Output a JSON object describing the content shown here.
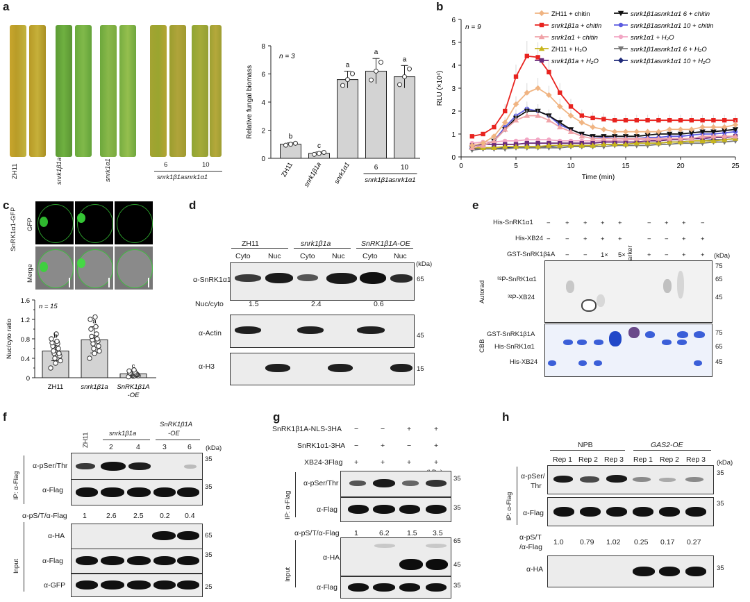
{
  "panels": {
    "a": "a",
    "b": "b",
    "c": "c",
    "d": "d",
    "e": "e",
    "f": "f",
    "g": "g",
    "h": "h"
  },
  "a": {
    "leaf_labels": [
      "ZH11",
      "snrk1β1a",
      "snrk1α1",
      "6",
      "10"
    ],
    "leaf_group": "snrk1β1asnrk1α1",
    "chart_data": {
      "type": "bar",
      "n": "n = 3",
      "ylabel": "Relative fungal biomass",
      "ylim": [
        0,
        8
      ],
      "yticks": [
        "0",
        "2",
        "4",
        "6",
        "8"
      ],
      "categories": [
        "ZH11",
        "snrk1β1a",
        "snrk1α1",
        "6",
        "10"
      ],
      "values": [
        1.0,
        0.35,
        5.6,
        6.2,
        5.8
      ],
      "errors": [
        0.1,
        0.1,
        0.6,
        0.9,
        0.8
      ],
      "letters": [
        "b",
        "c",
        "a",
        "a",
        "a"
      ],
      "group_label": "snrk1β1asnrk1α1"
    }
  },
  "b": {
    "chart_data": {
      "type": "line",
      "n": "n = 9",
      "xlabel": "Time (min)",
      "ylabel": "RLU (×10⁴)",
      "xlim": [
        0,
        25
      ],
      "ylim": [
        0,
        6
      ],
      "xticks": [
        "0",
        "5",
        "10",
        "15",
        "20",
        "25"
      ],
      "yticks": [
        "0",
        "1",
        "2",
        "3",
        "4",
        "5",
        "6"
      ],
      "x": [
        1,
        2,
        3,
        4,
        5,
        6,
        7,
        8,
        9,
        10,
        11,
        12,
        13,
        14,
        15,
        16,
        17,
        18,
        19,
        20,
        21,
        22,
        23,
        24,
        25
      ],
      "series": [
        {
          "name": "ZH11 + chitin",
          "color": "#f0b482",
          "marker": "diamond",
          "values": [
            0.5,
            0.6,
            0.9,
            1.5,
            2.3,
            2.8,
            3.0,
            2.7,
            2.2,
            1.8,
            1.5,
            1.3,
            1.2,
            1.1,
            1.1,
            1.1,
            1.1,
            1.1,
            1.2,
            1.2,
            1.2,
            1.3,
            1.3,
            1.3,
            1.4
          ]
        },
        {
          "name": "snrk1β1a + chitin",
          "color": "#e8231f",
          "marker": "square",
          "values": [
            0.9,
            1.0,
            1.3,
            2.0,
            3.5,
            4.4,
            4.35,
            3.7,
            2.8,
            2.2,
            1.8,
            1.7,
            1.65,
            1.6,
            1.6,
            1.6,
            1.6,
            1.6,
            1.6,
            1.6,
            1.6,
            1.6,
            1.6,
            1.6,
            1.6
          ]
        },
        {
          "name": "snrk1α1 + chitin",
          "color": "#f0a3a8",
          "marker": "triangle",
          "values": [
            0.4,
            0.5,
            0.7,
            1.2,
            1.6,
            1.8,
            1.8,
            1.6,
            1.3,
            1.1,
            0.9,
            0.8,
            0.8,
            0.8,
            0.8,
            0.8,
            0.8,
            0.8,
            0.8,
            0.8,
            0.8,
            0.9,
            0.9,
            0.9,
            0.9
          ]
        },
        {
          "name": "ZH11 + H₂O",
          "color": "#c7b51c",
          "marker": "triangle",
          "values": [
            0.4,
            0.4,
            0.4,
            0.45,
            0.45,
            0.45,
            0.45,
            0.5,
            0.5,
            0.5,
            0.5,
            0.5,
            0.55,
            0.55,
            0.55,
            0.6,
            0.6,
            0.6,
            0.65,
            0.65,
            0.7,
            0.7,
            0.7,
            0.75,
            0.8
          ]
        },
        {
          "name": "snrk1β1a + H₂O",
          "color": "#6a2a7a",
          "marker": "square",
          "values": [
            0.5,
            0.55,
            0.55,
            0.55,
            0.55,
            0.6,
            0.6,
            0.6,
            0.6,
            0.6,
            0.6,
            0.6,
            0.65,
            0.65,
            0.65,
            0.65,
            0.7,
            0.7,
            0.75,
            0.75,
            0.8,
            0.8,
            0.85,
            0.85,
            0.9
          ]
        },
        {
          "name": "snrk1β1asnrk1α1 6 + chitin",
          "color": "#111111",
          "marker": "triangle-down",
          "values": [
            0.4,
            0.5,
            0.7,
            1.2,
            1.7,
            2.0,
            2.0,
            1.8,
            1.5,
            1.2,
            1.0,
            0.9,
            0.9,
            0.9,
            0.9,
            0.9,
            0.95,
            1.0,
            1.0,
            1.0,
            1.05,
            1.1,
            1.1,
            1.15,
            1.2
          ]
        },
        {
          "name": "snrk1β1asnrk1α1 10 + chitin",
          "color": "#5b5be0",
          "marker": "circle",
          "values": [
            0.4,
            0.5,
            0.7,
            1.3,
            1.8,
            2.1,
            2.0,
            1.8,
            1.4,
            1.2,
            1.0,
            0.9,
            0.85,
            0.8,
            0.8,
            0.8,
            0.85,
            0.85,
            0.9,
            0.9,
            0.95,
            1.0,
            1.0,
            1.05,
            1.1
          ]
        },
        {
          "name": "snrk1α1 + H₂O",
          "color": "#f2a6c4",
          "marker": "circle",
          "values": [
            0.6,
            0.65,
            0.65,
            0.7,
            0.7,
            0.75,
            0.75,
            0.75,
            0.7,
            0.7,
            0.7,
            0.7,
            0.7,
            0.7,
            0.75,
            0.75,
            0.75,
            0.75,
            0.8,
            0.8,
            0.8,
            0.85,
            0.85,
            0.9,
            0.9
          ]
        },
        {
          "name": "snrk1β1asnrk1α1 6 + H₂O",
          "color": "#777777",
          "marker": "triangle-down",
          "values": [
            0.3,
            0.35,
            0.35,
            0.35,
            0.4,
            0.4,
            0.4,
            0.4,
            0.4,
            0.45,
            0.45,
            0.45,
            0.45,
            0.5,
            0.5,
            0.5,
            0.5,
            0.55,
            0.55,
            0.6,
            0.6,
            0.6,
            0.65,
            0.65,
            0.7
          ]
        },
        {
          "name": "snrk1β1asnrk1α1 10 + H₂O",
          "color": "#1f2a7a",
          "marker": "diamond",
          "values": [
            0.35,
            0.4,
            0.4,
            0.4,
            0.45,
            0.45,
            0.45,
            0.45,
            0.5,
            0.5,
            0.5,
            0.5,
            0.55,
            0.55,
            0.55,
            0.6,
            0.6,
            0.6,
            0.65,
            0.65,
            0.7,
            0.7,
            0.75,
            0.75,
            0.8
          ]
        }
      ]
    }
  },
  "c": {
    "gfp_label": "GFP",
    "merge_label": "Merge",
    "row_title": "SnRK1α1-GFP",
    "chart_data": {
      "type": "bar",
      "n": "n = 15",
      "ylabel": "Nuc/cyto ratio",
      "ylim": [
        0,
        1.6
      ],
      "yticks": [
        "0",
        "0.4",
        "0.8",
        "1.2",
        "1.6"
      ],
      "yticks_minor": [
        "0.2",
        "0.6",
        "1.0",
        "1.4"
      ],
      "categories": [
        "ZH11",
        "snrk1β1a",
        "SnRK1β1A-OE"
      ],
      "values": [
        0.55,
        0.78,
        0.08
      ],
      "errors": [
        0.2,
        0.27,
        0.05
      ],
      "letters": [
        "b",
        "a",
        "c"
      ],
      "points": [
        [
          0.2,
          0.3,
          0.35,
          0.4,
          0.45,
          0.5,
          0.5,
          0.55,
          0.6,
          0.65,
          0.7,
          0.72,
          0.75,
          0.8,
          0.9
        ],
        [
          0.4,
          0.5,
          0.55,
          0.6,
          0.65,
          0.7,
          0.75,
          0.78,
          0.8,
          0.85,
          0.9,
          1.0,
          1.05,
          1.2,
          1.25
        ],
        [
          0.02,
          0.03,
          0.04,
          0.05,
          0.06,
          0.07,
          0.07,
          0.08,
          0.08,
          0.09,
          0.1,
          0.1,
          0.12,
          0.14,
          0.16
        ]
      ]
    }
  },
  "d": {
    "groups": [
      "ZH11",
      "snrk1β1a",
      "SnRK1β1A-OE"
    ],
    "lanes": [
      "Cyto",
      "Nuc",
      "Cyto",
      "Nuc",
      "Cyto",
      "Nuc"
    ],
    "kda": "(kDa)",
    "rows": [
      {
        "label": "α-SnRK1α1",
        "size": "65"
      },
      {
        "label": "α-Actin",
        "size": "45"
      },
      {
        "label": "α-H3",
        "size": "15"
      }
    ],
    "ratio_label": "Nuc/cyto",
    "ratios": [
      "1.5",
      "2.4",
      "0.6"
    ]
  },
  "e": {
    "row_labels": [
      "His-SnRK1α1",
      "His-XB24",
      "GST-SnRK1β1A"
    ],
    "row1": [
      "−",
      "+",
      "+",
      "+",
      "+",
      "−",
      "+",
      "+",
      "−"
    ],
    "row2": [
      "−",
      "−",
      "+",
      "+",
      "+",
      "−",
      "−",
      "+",
      "+"
    ],
    "row3": [
      "−",
      "−",
      "−",
      "1×",
      "5×",
      "+",
      "−",
      "+",
      "+"
    ],
    "marker": "Marker",
    "kda": "(kDa)",
    "autorad_title": "Autorad",
    "autorad_bands": [
      "³²P-SnRK1α1",
      "³²P-XB24"
    ],
    "autorad_sizes": [
      "75",
      "65",
      "45"
    ],
    "cbb_title": "CBB",
    "cbb_bands": [
      "GST-SnRK1β1A",
      "His-SnRK1α1",
      "His-XB24"
    ],
    "cbb_sizes": [
      "75",
      "65",
      "45"
    ]
  },
  "f": {
    "lanes": [
      "ZH11",
      "2",
      "4",
      "3",
      "6"
    ],
    "group1": "snrk1β1a",
    "group2": "SnRK1β1A\n-OE",
    "group2a": "SnRK1β1A",
    "group2b": "-OE",
    "kda": "(kDa)",
    "ip_label": "IP: α-Flag",
    "input_label": "Input",
    "ip_rows": [
      {
        "label": "α-pSer/Thr",
        "size": "35"
      },
      {
        "label": "α-Flag",
        "size": "35"
      }
    ],
    "ratio_label": "α-pS/T/α-Flag",
    "ratios": [
      "1",
      "2.6",
      "2.5",
      "0.2",
      "0.4"
    ],
    "input_rows": [
      {
        "label": "α-HA",
        "size": "65"
      },
      {
        "label": "α-Flag",
        "size": "35"
      },
      {
        "label": "α-GFP",
        "size": "25"
      }
    ]
  },
  "g": {
    "row_labels": [
      "SnRK1β1A-NLS-3HA",
      "SnRK1α1-3HA",
      "XB24-3Flag"
    ],
    "row1": [
      "−",
      "−",
      "+",
      "+"
    ],
    "row2": [
      "−",
      "+",
      "−",
      "+"
    ],
    "row3": [
      "+",
      "+",
      "+",
      "+"
    ],
    "kda": "(kDa)",
    "ip_label": "IP: α-Flag",
    "input_label": "Input",
    "ip_rows": [
      {
        "label": "α-pSer/Thr",
        "size": "35"
      },
      {
        "label": "α-Flag",
        "size": "35"
      }
    ],
    "ratio_label": "α-pS/T/α-Flag",
    "ratios": [
      "1",
      "6.2",
      "1.5",
      "3.5"
    ],
    "input_rows": [
      {
        "label": "α-HA",
        "sizes": [
          "65",
          "45"
        ]
      },
      {
        "label": "α-Flag",
        "size": "35"
      }
    ]
  },
  "h": {
    "groups": [
      "NPB",
      "GAS2-OE"
    ],
    "lanes": [
      "Rep 1",
      "Rep 2",
      "Rep 3",
      "Rep 1",
      "Rep 2",
      "Rep 3"
    ],
    "kda": "(kDa)",
    "ip_label": "IP: α-Flag",
    "ip_rows": [
      {
        "label1": "α-pSer/",
        "label2": "Thr",
        "size": "35"
      },
      {
        "label": "α-Flag",
        "size": "35"
      }
    ],
    "ratio_label1": "α-pS/T",
    "ratio_label2": "/α-Flag",
    "ratios": [
      "1.0",
      "0.79",
      "1.02",
      "0.25",
      "0.17",
      "0.27"
    ],
    "ha_label": "α-HA",
    "ha_size": "35"
  }
}
